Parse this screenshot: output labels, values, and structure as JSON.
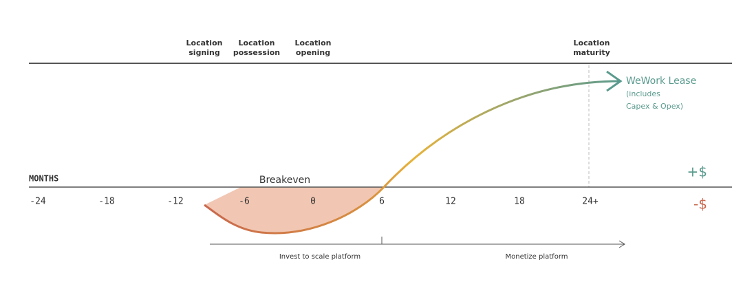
{
  "milestones": [
    {
      "line1": "Location",
      "line2": "signing"
    },
    {
      "line1": "Location",
      "line2": "possession"
    },
    {
      "line1": "Location",
      "line2": "opening"
    },
    {
      "line1": "Location",
      "line2": "maturity"
    }
  ],
  "axis": {
    "title": "MONTHS",
    "ticks": [
      "-24",
      "-18",
      "-12",
      "-6",
      "0",
      "6",
      "12",
      "18",
      "24+"
    ]
  },
  "breakeven": "Breakeven",
  "lease": {
    "name": "WeWork Lease",
    "note1": "(includes",
    "note2": "Capex & Opex)"
  },
  "positive": "+$",
  "negative": "-$",
  "phases": [
    "Invest to scale platform",
    "Monetize platform"
  ]
}
